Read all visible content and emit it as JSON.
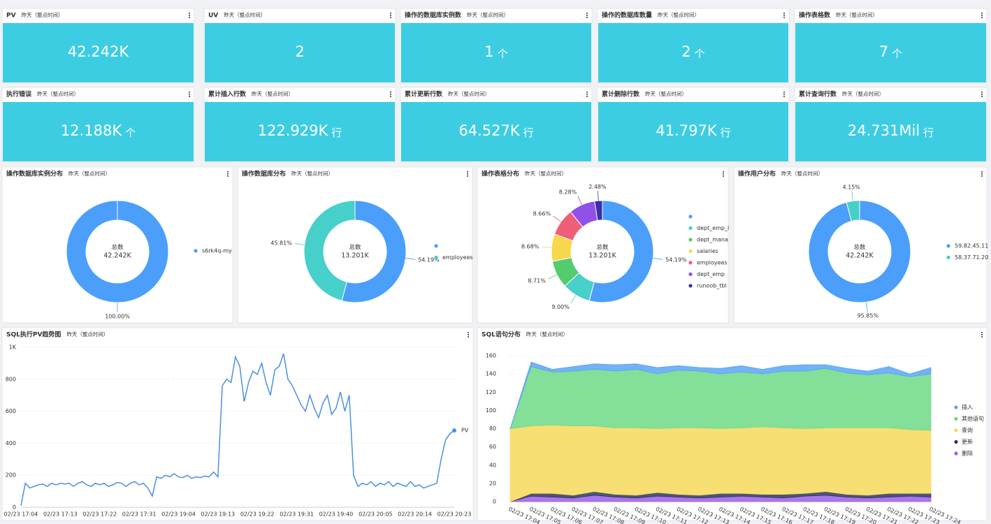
{
  "cards": [
    {
      "title": "PV",
      "subtitle": "昨天（整点时间）",
      "value": "42.242K"
    },
    {
      "title": "UV",
      "subtitle": "昨天（整点时间）",
      "value": "2"
    },
    {
      "title": "操作的数据库实例数",
      "subtitle": "昨天（整点时间）",
      "value": "1",
      "unit": "个"
    },
    {
      "title": "操作的数据库数量",
      "subtitle": "昨天（整点时间）",
      "value": "2",
      "unit": "个"
    },
    {
      "title": "操作表格数",
      "subtitle": "昨天（整点时间）",
      "value": "7",
      "unit": "个"
    },
    {
      "title": "执行错误",
      "subtitle": "昨天（整点时间）",
      "value": "12.188K",
      "unit": "个"
    },
    {
      "title": "累计插入行数",
      "subtitle": "昨天（整点时间）",
      "value": "122.929K",
      "unit": "行"
    },
    {
      "title": "累计更新行数",
      "subtitle": "昨天（整点时间）",
      "value": "64.527K",
      "unit": "行"
    },
    {
      "title": "累计删除行数",
      "subtitle": "昨天（整点时间）",
      "value": "41.797K",
      "unit": "行"
    },
    {
      "title": "累计查询行数",
      "subtitle": "昨天（整点时间）",
      "value": "24.731Mil",
      "unit": "行"
    }
  ],
  "chart_data": [
    {
      "type": "donut",
      "title": "操作数据库实例分布",
      "subtitle": "昨天（整点时间）",
      "center_label": "总数",
      "center_value": "42.242K",
      "categories": [
        "s6rk4q-my"
      ],
      "values": [
        100
      ],
      "value_labels": [
        "100.00%"
      ],
      "colors": [
        "#4b9ffb"
      ]
    },
    {
      "type": "donut",
      "title": "操作数据库分布",
      "subtitle": "昨天（整点时间）",
      "center_label": "总数",
      "center_value": "13.201K",
      "categories": [
        null,
        "employees"
      ],
      "values": [
        54.19,
        45.81
      ],
      "value_labels": [
        "54.19%",
        "45.81%"
      ],
      "colors": [
        "#4b9ffb",
        "#47cfc9"
      ]
    },
    {
      "type": "donut",
      "title": "操作表格分布",
      "subtitle": "昨天（整点时间）",
      "center_label": "总数",
      "center_value": "13.201K",
      "categories": [
        null,
        "dept_emp_l",
        "dept_mana",
        "salaries",
        "employees",
        "dept_emp",
        "runoob_tbl"
      ],
      "values": [
        54.19,
        9.0,
        8.71,
        8.68,
        8.66,
        8.28,
        2.48
      ],
      "value_labels": [
        "54.19%",
        "9.00%",
        "8.71%",
        "8.68%",
        "8.66%",
        "8.28%",
        "2.48%"
      ],
      "colors": [
        "#4b9ffb",
        "#47cfc9",
        "#52cc6e",
        "#f7d84a",
        "#ef5f7a",
        "#9150e8",
        "#3a2fb0"
      ]
    },
    {
      "type": "donut",
      "title": "操作用户分布",
      "subtitle": "昨天（整点时间）",
      "center_label": "总数",
      "center_value": "42.242K",
      "categories": [
        "59.82.45.11",
        "58.37.71.20"
      ],
      "values": [
        95.85,
        4.15
      ],
      "value_labels": [
        "95.85%",
        "4.15%"
      ],
      "colors": [
        "#4b9ffb",
        "#47cfc9"
      ]
    },
    {
      "type": "line",
      "title": "SQL执行PV趋势图",
      "subtitle": "昨天（整点时间）",
      "categories": [
        "02/23 17:04",
        null,
        null,
        null,
        null,
        null,
        null,
        null,
        null,
        "02/23 17:13",
        null,
        null,
        null,
        null,
        null,
        null,
        null,
        null,
        "02/23 17:22",
        null,
        null,
        null,
        null,
        null,
        null,
        null,
        null,
        "02/23 17:31",
        null,
        null,
        null,
        null,
        null,
        null,
        null,
        null,
        "02/23 19:04",
        null,
        null,
        null,
        null,
        null,
        null,
        null,
        null,
        "02/23 19:13",
        null,
        null,
        null,
        null,
        null,
        null,
        null,
        null,
        "02/23 19:22",
        null,
        null,
        null,
        null,
        null,
        null,
        null,
        null,
        "02/23 19:31",
        null,
        null,
        null,
        null,
        null,
        null,
        null,
        null,
        "02/23 19:40",
        null,
        null,
        null,
        null,
        null,
        null,
        null,
        null,
        "02/23 20:05",
        null,
        null,
        null,
        null,
        null,
        null,
        null,
        null,
        "02/23 20:14",
        null,
        null,
        null,
        null,
        null,
        null,
        null,
        null,
        "02/23 20:23"
      ],
      "series": [
        {
          "name": "PV",
          "color": "#4a90e2",
          "values": [
            10,
            150,
            120,
            130,
            140,
            145,
            130,
            150,
            140,
            150,
            145,
            150,
            130,
            150,
            160,
            140,
            130,
            150,
            140,
            150,
            130,
            140,
            155,
            150,
            130,
            150,
            160,
            140,
            150,
            120,
            70,
            190,
            180,
            200,
            190,
            210,
            190,
            185,
            200,
            180,
            190,
            185,
            195,
            190,
            220,
            190,
            760,
            800,
            780,
            940,
            880,
            660,
            780,
            850,
            830,
            900,
            780,
            700,
            860,
            880,
            960,
            800,
            760,
            700,
            640,
            600,
            700,
            620,
            560,
            650,
            700,
            580,
            620,
            720,
            600,
            700,
            200,
            130,
            150,
            140,
            160,
            130,
            150,
            140,
            160,
            130,
            150,
            140,
            130,
            160,
            130,
            140,
            120,
            130,
            140,
            150,
            300,
            420,
            460,
            480
          ]
        }
      ],
      "ylim": [
        0,
        1000
      ],
      "yticks": [
        0,
        200,
        400,
        600,
        800,
        {
          "value": 1000,
          "label": "1K"
        }
      ],
      "grid": true
    },
    {
      "type": "stacked_area",
      "title": "SQL语句分布",
      "subtitle": "昨天（整点时间）",
      "categories": [
        "02/23 17:04",
        "02/23 17:05",
        "02/23 17:06",
        "02/23 17:07",
        "02/23 17:08",
        "02/23 17:09",
        "02/23 17:10",
        "02/23 17:11",
        "02/23 17:12",
        "02/23 17:13",
        "02/23 17:14",
        "02/23 17:15",
        "02/23 17:16",
        "02/23 17:17",
        "02/23 17:18",
        "02/23 17:19",
        "02/23 17:20",
        "02/23 17:21",
        "02/23 17:22",
        "02/23 17:23",
        "02/23 17:24"
      ],
      "series": [
        {
          "name": "插入",
          "color": "#5aa4f5",
          "values": [
            0,
            5,
            3,
            5,
            6,
            7,
            6,
            7,
            5,
            4,
            6,
            7,
            5,
            6,
            7,
            4,
            5,
            4,
            7,
            3,
            7
          ]
        },
        {
          "name": "其他语句",
          "color": "#6fd987",
          "values": [
            0,
            65,
            58,
            60,
            62,
            62,
            64,
            60,
            63,
            62,
            60,
            61,
            58,
            62,
            63,
            65,
            60,
            58,
            60,
            58,
            62
          ]
        },
        {
          "name": "查询",
          "color": "#f7d95a",
          "values": [
            80,
            74,
            75,
            76,
            72,
            73,
            74,
            70,
            73,
            74,
            71,
            72,
            74,
            73,
            71,
            70,
            73,
            74,
            72,
            70,
            69
          ]
        },
        {
          "name": "更新",
          "color": "#2c3563",
          "values": [
            0,
            3,
            4,
            3,
            4,
            3,
            3,
            4,
            3,
            3,
            4,
            3,
            3,
            4,
            3,
            4,
            3,
            3,
            4,
            3,
            4
          ]
        },
        {
          "name": "删除",
          "color": "#9b5ee8",
          "values": [
            0,
            6,
            5,
            4,
            7,
            5,
            4,
            6,
            5,
            4,
            5,
            6,
            5,
            4,
            6,
            7,
            5,
            4,
            5,
            6,
            5
          ]
        }
      ],
      "ylim": [
        0,
        160
      ],
      "yticks": [
        0,
        20,
        40,
        60,
        80,
        100,
        120,
        140,
        160
      ],
      "grid": true
    }
  ]
}
